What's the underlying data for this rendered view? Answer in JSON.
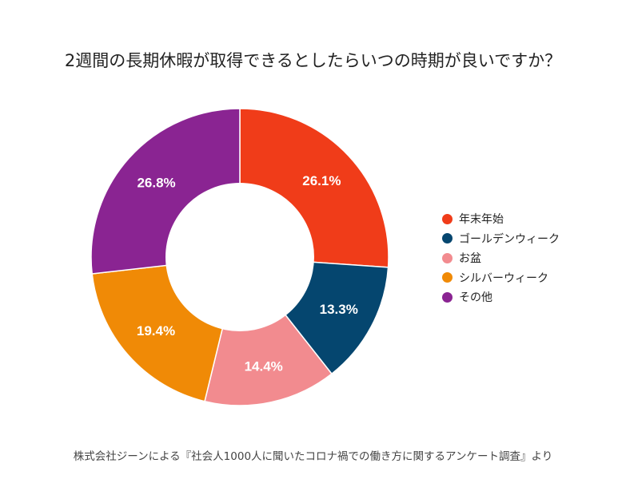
{
  "chart_data": {
    "type": "pie",
    "style": "donut",
    "title": "2週間の長期休暇が取得できるとしたらいつの時期が良いですか？",
    "categories": [
      "年末年始",
      "ゴールデンウィーク",
      "お盆",
      "シルバーウィーク",
      "その他"
    ],
    "values": [
      26.1,
      13.3,
      14.4,
      19.4,
      26.8
    ],
    "value_labels": [
      "26.1%",
      "13.3%",
      "14.4%",
      "19.4%",
      "26.8%"
    ],
    "colors": [
      "#f03c19",
      "#05466f",
      "#f28b8f",
      "#f08a06",
      "#8a2492"
    ],
    "legend_position": "right",
    "unit": "%"
  },
  "footnote": "株式会社ジーンによる『社会人1000人に聞いたコロナ禍での働き方に関するアンケート調査』より"
}
